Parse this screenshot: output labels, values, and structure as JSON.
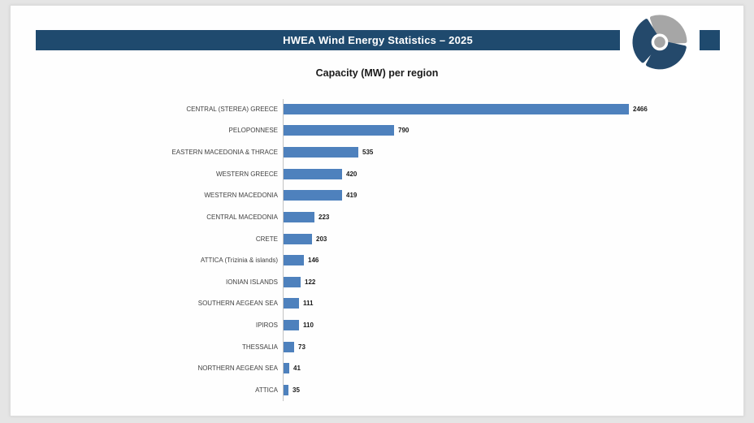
{
  "header": {
    "title": "HWEA Wind Energy Statistics – 2025",
    "bar_color": "#1f4a6e",
    "text_color": "#ffffff"
  },
  "logo": {
    "name": "wind-turbine-rotor-logo",
    "navy": "#24496b",
    "gray": "#a6a6a6"
  },
  "chart_data": {
    "type": "bar",
    "orientation": "horizontal",
    "title": "Capacity (MW) per region",
    "categories": [
      "CENTRAL (STEREA) GREECE",
      "PELOPONNESE",
      "EASTERN MACEDONIA & THRACE",
      "WESTERN GREECE",
      "WESTERN MACEDONIA",
      "CENTRAL MACEDONIA",
      "CRETE",
      "ATTICA (Trizinia & islands)",
      "IONIAN ISLANDS",
      "SOUTHERN AEGEAN SEA",
      "IPIROS",
      "THESSALIA",
      "NORTHERN AEGEAN SEA",
      "ATTICA"
    ],
    "values": [
      2466,
      790,
      535,
      420,
      419,
      223,
      203,
      146,
      122,
      111,
      110,
      73,
      41,
      35
    ],
    "value_labels": [
      "2466",
      "790",
      "535",
      "420",
      "419",
      "223",
      "203",
      "146",
      "122",
      "111",
      "110",
      "73",
      "41",
      "35"
    ],
    "xlabel": "",
    "ylabel": "",
    "xlim": [
      0,
      2600
    ],
    "grid": false,
    "legend": false,
    "bar_color": "#4e81bd",
    "axis_color": "#c3c3c3"
  }
}
